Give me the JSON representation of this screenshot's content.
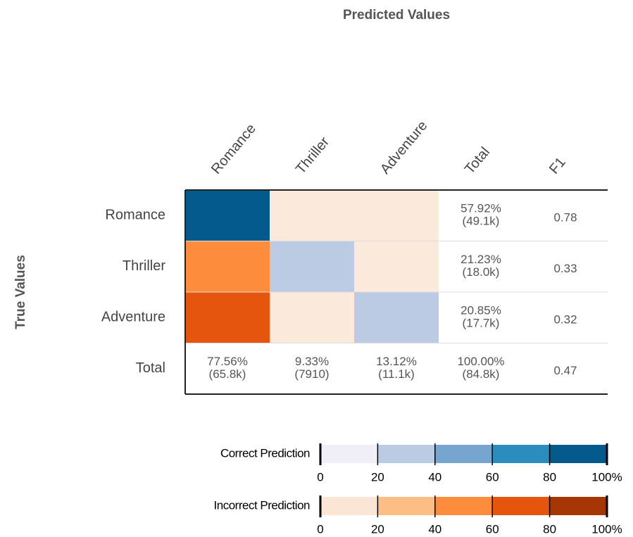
{
  "chart_data": {
    "type": "confusion_matrix",
    "title": "Predicted Values",
    "y_label": "True Values",
    "columns": [
      "Romance",
      "Thriller",
      "Adventure",
      "Total",
      "F1"
    ],
    "rows": [
      "Romance",
      "Thriller",
      "Adventure",
      "Total"
    ],
    "cell_colors": [
      [
        "#045a8d",
        "#fbe9dc",
        "#fbe9dc"
      ],
      [
        "#fd8d3c",
        "#bccbe4",
        "#fbe9dc"
      ],
      [
        "#e6550d",
        "#fbe9dc",
        "#bccbe4"
      ]
    ],
    "row_totals": [
      {
        "percent": "57.92%",
        "count": "(49.1k)"
      },
      {
        "percent": "21.23%",
        "count": "(18.0k)"
      },
      {
        "percent": "20.85%",
        "count": "(17.7k)"
      }
    ],
    "column_totals": [
      {
        "percent": "77.56%",
        "count": "(65.8k)"
      },
      {
        "percent": "9.33%",
        "count": "(7910)"
      },
      {
        "percent": "13.12%",
        "count": "(11.1k)"
      },
      {
        "percent": "100.00%",
        "count": "(84.8k)"
      }
    ],
    "f1": [
      0.78,
      0.33,
      0.32,
      0.47
    ],
    "legends": [
      {
        "label": "Correct Prediction",
        "colors": [
          "#f0eef6",
          "#bccbe4",
          "#76a5d0",
          "#2b8cbe",
          "#045a8d"
        ],
        "lim": [
          0,
          100
        ],
        "ticks": [
          0,
          20,
          40,
          60,
          80,
          {
            "value": 100,
            "label": "100%"
          }
        ]
      },
      {
        "label": "Incorrect Prediction",
        "colors": [
          "#fbe6d6",
          "#fdbe85",
          "#fd8d3c",
          "#e6550d",
          "#a63603"
        ],
        "lim": [
          0,
          100
        ],
        "ticks": [
          0,
          20,
          40,
          60,
          80,
          {
            "value": 100,
            "label": "100%"
          }
        ]
      }
    ]
  }
}
